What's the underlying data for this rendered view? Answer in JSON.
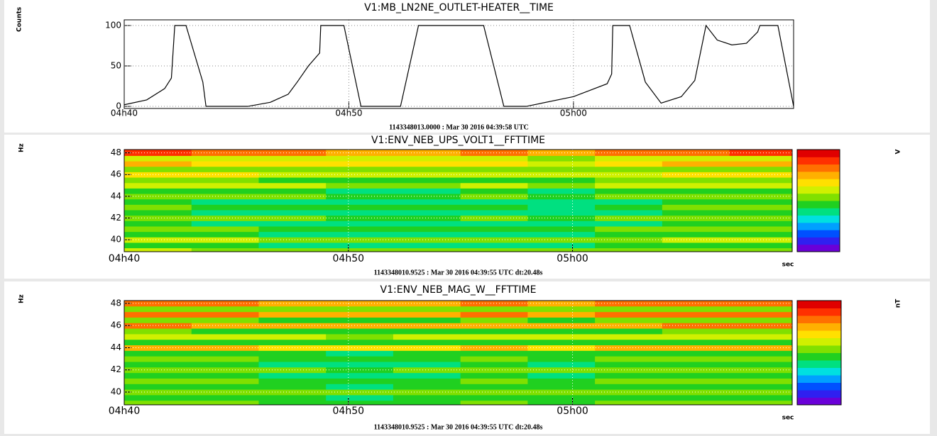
{
  "chart_data": [
    {
      "type": "line",
      "title": "V1:MB_LN2NE_OUTLET-HEATER__TIME",
      "ylabel": "Counts",
      "caption": "1143348013.0000 : Mar 30 2016 04:39:58 UTC",
      "color": "#000000",
      "grid": true,
      "x": [
        0,
        1,
        1.8,
        2.1,
        2.25,
        2.75,
        3.5,
        3.64,
        5.5,
        6.5,
        7.3,
        7.7,
        8.2,
        8.7,
        8.75,
        9.78,
        10.54,
        12.3,
        13.1,
        16.0,
        16.9,
        17.9,
        20.0,
        21.5,
        21.7,
        21.75,
        22.5,
        23.2,
        23.9,
        24.8,
        25.4,
        25.9,
        26.4,
        27.05,
        27.7,
        28.2,
        28.3,
        29.1,
        29.8
      ],
      "values": [
        2,
        8,
        22,
        35,
        100,
        100,
        30,
        0,
        0,
        5,
        15,
        30,
        50,
        66,
        100,
        100,
        0,
        0,
        100,
        100,
        0,
        0,
        12,
        28,
        40,
        100,
        100,
        30,
        4,
        12,
        32,
        100,
        82,
        76,
        78,
        92,
        100,
        100,
        0
      ],
      "xlim": [
        0,
        29.8
      ],
      "ylim": [
        -2.6,
        107
      ],
      "xticks": [
        {
          "value": 0,
          "label": "04h40"
        },
        {
          "value": 10,
          "label": "04h50"
        },
        {
          "value": 20,
          "label": "05h00"
        }
      ],
      "yticks": [
        0,
        50,
        100
      ]
    },
    {
      "type": "spectrogram",
      "title": "V1:ENV_NEB_UPS_VOLT1__FFTTIME",
      "ylabel": "Hz",
      "zlabel": "V",
      "xlabel": "sec",
      "caption": "1143348010.9525 : Mar 30 2016 04:39:55 UTC dt:20.48s",
      "xlim": [
        0,
        29.8
      ],
      "ylim": [
        38.9,
        48.3
      ],
      "xticks": [
        {
          "value": 0,
          "label": "04h40"
        },
        {
          "value": 10,
          "label": "04h50"
        },
        {
          "value": 20,
          "label": "05h00"
        }
      ],
      "yticks": [
        40,
        42,
        44,
        46,
        48
      ],
      "time_bins": [
        0,
        3,
        6,
        9,
        12,
        15,
        18,
        21,
        24,
        27,
        29.8
      ],
      "freq_bins": [
        38.9,
        39.25,
        39.75,
        40.25,
        40.75,
        41.25,
        41.75,
        42.25,
        42.75,
        43.25,
        43.75,
        44.25,
        44.75,
        45.25,
        45.75,
        46.25,
        46.75,
        47.25,
        47.75,
        48.3
      ],
      "colormap": [
        "#6a00d8",
        "#3020f0",
        "#0050ff",
        "#00a0ff",
        "#00e0e0",
        "#00e080",
        "#20d020",
        "#80e000",
        "#d0f000",
        "#ffe000",
        "#ffb000",
        "#ff7000",
        "#ff3000",
        "#e00000"
      ],
      "z": [
        [
          0.58,
          0.55,
          0.52,
          0.5,
          0.5,
          0.52,
          0.5,
          0.55,
          0.56,
          0.57
        ],
        [
          0.48,
          0.45,
          0.42,
          0.4,
          0.4,
          0.42,
          0.4,
          0.44,
          0.46,
          0.47
        ],
        [
          0.6,
          0.58,
          0.55,
          0.52,
          0.52,
          0.55,
          0.52,
          0.57,
          0.6,
          0.6
        ],
        [
          0.47,
          0.45,
          0.42,
          0.4,
          0.4,
          0.42,
          0.4,
          0.44,
          0.46,
          0.46
        ],
        [
          0.52,
          0.5,
          0.46,
          0.44,
          0.44,
          0.46,
          0.44,
          0.5,
          0.52,
          0.52
        ],
        [
          0.45,
          0.42,
          0.4,
          0.38,
          0.38,
          0.4,
          0.38,
          0.42,
          0.44,
          0.45
        ],
        [
          0.55,
          0.52,
          0.5,
          0.48,
          0.48,
          0.5,
          0.47,
          0.52,
          0.55,
          0.55
        ],
        [
          0.45,
          0.42,
          0.4,
          0.38,
          0.38,
          0.4,
          0.37,
          0.42,
          0.44,
          0.45
        ],
        [
          0.5,
          0.48,
          0.45,
          0.43,
          0.43,
          0.45,
          0.42,
          0.48,
          0.5,
          0.5
        ],
        [
          0.45,
          0.42,
          0.4,
          0.38,
          0.38,
          0.4,
          0.37,
          0.42,
          0.44,
          0.45
        ],
        [
          0.56,
          0.54,
          0.5,
          0.48,
          0.48,
          0.5,
          0.47,
          0.53,
          0.56,
          0.56
        ],
        [
          0.48,
          0.46,
          0.43,
          0.41,
          0.41,
          0.43,
          0.4,
          0.45,
          0.48,
          0.48
        ],
        [
          0.64,
          0.62,
          0.58,
          0.56,
          0.56,
          0.58,
          0.55,
          0.6,
          0.63,
          0.64
        ],
        [
          0.52,
          0.5,
          0.47,
          0.45,
          0.45,
          0.47,
          0.44,
          0.5,
          0.52,
          0.52
        ],
        [
          0.68,
          0.66,
          0.62,
          0.6,
          0.6,
          0.62,
          0.58,
          0.64,
          0.67,
          0.68
        ],
        [
          0.57,
          0.55,
          0.52,
          0.5,
          0.5,
          0.52,
          0.5,
          0.55,
          0.57,
          0.57
        ],
        [
          0.72,
          0.7,
          0.67,
          0.65,
          0.65,
          0.67,
          0.63,
          0.7,
          0.72,
          0.72
        ],
        [
          0.64,
          0.62,
          0.6,
          0.58,
          0.58,
          0.6,
          0.56,
          0.62,
          0.64,
          0.64
        ],
        [
          0.86,
          0.84,
          0.8,
          0.78,
          0.78,
          0.8,
          0.76,
          0.82,
          0.85,
          0.86
        ]
      ]
    },
    {
      "type": "spectrogram",
      "title": "V1:ENV_NEB_MAG_W__FFTTIME",
      "ylabel": "Hz",
      "zlabel": "nT",
      "xlabel": "sec",
      "caption": "1143348010.9525 : Mar 30 2016 04:39:55 UTC dt:20.48s",
      "xlim": [
        0,
        29.8
      ],
      "ylim": [
        38.85,
        48.25
      ],
      "xticks": [
        {
          "value": 0,
          "label": "04h40"
        },
        {
          "value": 10,
          "label": "04h50"
        },
        {
          "value": 20,
          "label": "05h00"
        }
      ],
      "yticks": [
        40,
        42,
        44,
        46,
        48
      ],
      "time_bins": [
        0,
        3,
        6,
        9,
        12,
        15,
        18,
        21,
        24,
        27,
        29.8
      ],
      "freq_bins": [
        38.85,
        39.25,
        39.75,
        40.25,
        40.75,
        41.25,
        41.75,
        42.25,
        42.75,
        43.25,
        43.75,
        44.25,
        44.75,
        45.25,
        45.75,
        46.25,
        46.75,
        47.25,
        47.75,
        48.25
      ],
      "colormap": [
        "#6a00d8",
        "#3020f0",
        "#0050ff",
        "#00a0ff",
        "#00e0e0",
        "#00e080",
        "#20d020",
        "#80e000",
        "#d0f000",
        "#ffe000",
        "#ffb000",
        "#ff7000",
        "#ff3000",
        "#e00000"
      ],
      "z": [
        [
          0.52,
          0.5,
          0.48,
          0.47,
          0.48,
          0.5,
          0.48,
          0.5,
          0.52,
          0.52
        ],
        [
          0.46,
          0.44,
          0.43,
          0.42,
          0.43,
          0.44,
          0.43,
          0.45,
          0.46,
          0.46
        ],
        [
          0.56,
          0.55,
          0.53,
          0.52,
          0.53,
          0.55,
          0.53,
          0.55,
          0.56,
          0.56
        ],
        [
          0.46,
          0.44,
          0.43,
          0.42,
          0.43,
          0.44,
          0.43,
          0.45,
          0.46,
          0.46
        ],
        [
          0.52,
          0.5,
          0.48,
          0.47,
          0.48,
          0.5,
          0.48,
          0.5,
          0.52,
          0.52
        ],
        [
          0.45,
          0.43,
          0.42,
          0.41,
          0.42,
          0.43,
          0.42,
          0.44,
          0.45,
          0.45
        ],
        [
          0.54,
          0.52,
          0.5,
          0.49,
          0.5,
          0.52,
          0.5,
          0.52,
          0.54,
          0.54
        ],
        [
          0.45,
          0.43,
          0.42,
          0.41,
          0.42,
          0.43,
          0.42,
          0.44,
          0.45,
          0.45
        ],
        [
          0.52,
          0.5,
          0.48,
          0.47,
          0.48,
          0.5,
          0.48,
          0.5,
          0.52,
          0.52
        ],
        [
          0.46,
          0.44,
          0.43,
          0.42,
          0.43,
          0.44,
          0.43,
          0.45,
          0.46,
          0.46
        ],
        [
          0.74,
          0.72,
          0.7,
          0.68,
          0.7,
          0.72,
          0.7,
          0.72,
          0.74,
          0.74
        ],
        [
          0.48,
          0.46,
          0.45,
          0.44,
          0.45,
          0.46,
          0.45,
          0.47,
          0.48,
          0.48
        ],
        [
          0.62,
          0.6,
          0.58,
          0.57,
          0.58,
          0.6,
          0.58,
          0.6,
          0.62,
          0.62
        ],
        [
          0.5,
          0.48,
          0.47,
          0.46,
          0.47,
          0.48,
          0.47,
          0.49,
          0.5,
          0.5
        ],
        [
          0.8,
          0.78,
          0.76,
          0.74,
          0.76,
          0.78,
          0.76,
          0.78,
          0.8,
          0.8
        ],
        [
          0.52,
          0.5,
          0.49,
          0.48,
          0.49,
          0.5,
          0.49,
          0.51,
          0.52,
          0.52
        ],
        [
          0.8,
          0.79,
          0.77,
          0.75,
          0.77,
          0.79,
          0.77,
          0.79,
          0.8,
          0.8
        ],
        [
          0.56,
          0.54,
          0.53,
          0.52,
          0.53,
          0.54,
          0.53,
          0.55,
          0.56,
          0.56
        ],
        [
          0.82,
          0.8,
          0.78,
          0.76,
          0.78,
          0.8,
          0.78,
          0.8,
          0.82,
          0.82
        ]
      ]
    }
  ]
}
